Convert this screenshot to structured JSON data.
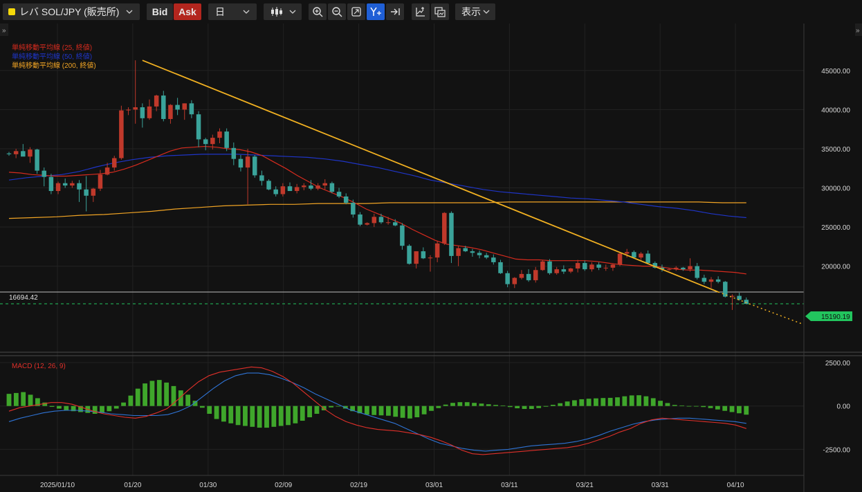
{
  "toolbar": {
    "symbol": "レバ SOL/JPY (販売所)",
    "bid_label": "Bid",
    "ask_label": "Ask",
    "interval": "日",
    "display_label": "表示",
    "colors": {
      "symbol_marker": "#f5d90a",
      "ask_bg": "#b3261e",
      "active_tool": "#1f5fd6"
    },
    "icons": [
      "chevron-down-icon",
      "candlestick-type-icon",
      "zoom-in-icon",
      "zoom-out-icon",
      "fit-screen-icon",
      "y-axis-scale-icon",
      "scroll-to-latest-icon",
      "add-indicator-icon",
      "compare-icon",
      "chevron-down-icon"
    ]
  },
  "chart_data": [
    {
      "type": "candlestick",
      "title": "",
      "legend": [
        {
          "label": "単純移動平均線 (25, 終値)",
          "color": "#d62b1e"
        },
        {
          "label": "単純移動平均線 (50, 終値)",
          "color": "#1f35c8"
        },
        {
          "label": "単純移動平均線 (200, 終値)",
          "color": "#f1a424"
        }
      ],
      "x_ticks": [
        "2025/01/10",
        "01/20",
        "01/30",
        "02/09",
        "02/19",
        "03/01",
        "03/11",
        "03/21",
        "03/31",
        "04/10"
      ],
      "y_ticks": [
        20000,
        25000,
        30000,
        35000,
        40000,
        45000
      ],
      "y_tick_labels": [
        "20000.00",
        "25000.00",
        "30000.00",
        "35000.00",
        "40000.00",
        "45000.00"
      ],
      "y_range": [
        9000,
        51000
      ],
      "horizontal_line": {
        "value": 16694.42,
        "label": "16694.42"
      },
      "current_price": {
        "value": 15190.19,
        "label": "15190.19",
        "color": "#22c55e"
      },
      "up_color": "#c0392b",
      "down_color": "#3aa39a",
      "ohlc": [
        [
          34400,
          34600,
          34100,
          34300
        ],
        [
          34300,
          35000,
          33800,
          34700
        ],
        [
          34700,
          35600,
          34200,
          34000
        ],
        [
          34000,
          35200,
          33200,
          34900
        ],
        [
          34900,
          35000,
          31800,
          32200
        ],
        [
          32200,
          32600,
          30200,
          31400
        ],
        [
          31400,
          31800,
          29200,
          29600
        ],
        [
          29600,
          30800,
          29200,
          30600
        ],
        [
          30600,
          31200,
          30000,
          30300
        ],
        [
          30300,
          30900,
          30000,
          30600
        ],
        [
          30600,
          31000,
          28200,
          29800
        ],
        [
          29800,
          31500,
          27000,
          29000
        ],
        [
          29000,
          30000,
          28200,
          29900
        ],
        [
          29900,
          32300,
          29600,
          31700
        ],
        [
          31700,
          33200,
          31600,
          32600
        ],
        [
          32600,
          34100,
          32200,
          33800
        ],
        [
          33800,
          40500,
          33600,
          39900
        ],
        [
          39900,
          40300,
          39300,
          40000
        ],
        [
          40000,
          46300,
          38200,
          40300
        ],
        [
          40300,
          40800,
          37700,
          38900
        ],
        [
          38900,
          41300,
          38700,
          40400
        ],
        [
          40400,
          41900,
          39800,
          41800
        ],
        [
          41800,
          42400,
          38500,
          38800
        ],
        [
          38800,
          40700,
          38200,
          40600
        ],
        [
          40600,
          41500,
          39300,
          40000
        ],
        [
          40000,
          40800,
          38700,
          40800
        ],
        [
          40800,
          41200,
          38900,
          39400
        ],
        [
          39400,
          39800,
          35200,
          36200
        ],
        [
          36200,
          36400,
          34800,
          35600
        ],
        [
          35600,
          36800,
          34900,
          36400
        ],
        [
          36400,
          37600,
          35700,
          37200
        ],
        [
          37200,
          37600,
          34700,
          35100
        ],
        [
          35100,
          35800,
          32900,
          33700
        ],
        [
          33700,
          34200,
          32100,
          32600
        ],
        [
          32600,
          35000,
          27900,
          34000
        ],
        [
          34000,
          34200,
          31300,
          31600
        ],
        [
          31600,
          32200,
          30300,
          30900
        ],
        [
          30900,
          31100,
          29700,
          29800
        ],
        [
          29800,
          30200,
          28900,
          29200
        ],
        [
          29200,
          30600,
          28900,
          30200
        ],
        [
          30200,
          30700,
          29600,
          29600
        ],
        [
          29600,
          30500,
          29300,
          30100
        ],
        [
          30100,
          30600,
          29700,
          30300
        ],
        [
          30300,
          31000,
          29700,
          29900
        ],
        [
          29900,
          30600,
          29700,
          30300
        ],
        [
          30300,
          31100,
          29800,
          30600
        ],
        [
          30600,
          30800,
          29300,
          29500
        ],
        [
          29500,
          30000,
          28700,
          28900
        ],
        [
          28900,
          29300,
          27900,
          28100
        ],
        [
          28100,
          28500,
          26200,
          26600
        ],
        [
          26600,
          26900,
          25100,
          25300
        ],
        [
          25300,
          25600,
          25200,
          25500
        ],
        [
          25500,
          26700,
          25000,
          26300
        ],
        [
          26300,
          26700,
          25400,
          25600
        ],
        [
          25600,
          26300,
          25300,
          25600
        ],
        [
          25600,
          26000,
          25100,
          25200
        ],
        [
          25200,
          25500,
          22100,
          22600
        ],
        [
          22600,
          22800,
          20200,
          20300
        ],
        [
          20300,
          21900,
          19700,
          21900
        ],
        [
          21900,
          22400,
          20900,
          21000
        ],
        [
          21000,
          21400,
          19300,
          21100
        ],
        [
          21100,
          23200,
          20500,
          22900
        ],
        [
          22900,
          26900,
          22700,
          26800
        ],
        [
          26800,
          27000,
          20400,
          21300
        ],
        [
          21300,
          22600,
          20000,
          22300
        ],
        [
          22300,
          22600,
          21800,
          21900
        ],
        [
          21900,
          22200,
          21200,
          21700
        ],
        [
          21700,
          22000,
          21000,
          21400
        ],
        [
          21400,
          21700,
          20900,
          21100
        ],
        [
          21100,
          21500,
          20200,
          20500
        ],
        [
          20500,
          20800,
          19000,
          19100
        ],
        [
          19100,
          19400,
          17300,
          17700
        ],
        [
          17700,
          18600,
          17200,
          18500
        ],
        [
          18500,
          19500,
          18300,
          19000
        ],
        [
          19000,
          19600,
          18000,
          18200
        ],
        [
          18200,
          19900,
          17900,
          19500
        ],
        [
          19500,
          20800,
          19400,
          20600
        ],
        [
          20600,
          20900,
          18900,
          19100
        ],
        [
          19100,
          19900,
          18900,
          19600
        ],
        [
          19600,
          20100,
          19000,
          19300
        ],
        [
          19300,
          19800,
          19100,
          19700
        ],
        [
          19700,
          20800,
          19200,
          20400
        ],
        [
          20400,
          20700,
          19400,
          19600
        ],
        [
          19600,
          20500,
          19300,
          20200
        ],
        [
          20200,
          20500,
          19500,
          19800
        ],
        [
          19800,
          20200,
          19400,
          19800
        ],
        [
          19800,
          20300,
          19400,
          20200
        ],
        [
          20200,
          21800,
          20000,
          21600
        ],
        [
          21600,
          22200,
          21100,
          21800
        ],
        [
          21800,
          22000,
          21000,
          21100
        ],
        [
          21100,
          21800,
          20800,
          21600
        ],
        [
          21600,
          22000,
          20300,
          20400
        ],
        [
          20400,
          20600,
          19700,
          19800
        ],
        [
          19800,
          20200,
          19300,
          19600
        ],
        [
          19600,
          19800,
          19400,
          19600
        ],
        [
          19600,
          20000,
          19400,
          19800
        ],
        [
          19800,
          19900,
          19400,
          19600
        ],
        [
          19600,
          21000,
          19300,
          20000
        ],
        [
          20000,
          20400,
          18300,
          18500
        ],
        [
          18500,
          18900,
          17700,
          18000
        ],
        [
          18000,
          18600,
          17200,
          18300
        ],
        [
          18300,
          18700,
          17800,
          18000
        ],
        [
          18000,
          18100,
          16000,
          16100
        ],
        [
          16100,
          16400,
          14400,
          16200
        ],
        [
          16200,
          16600,
          15600,
          15700
        ],
        [
          15700,
          16000,
          15100,
          15190
        ]
      ],
      "ma25": [
        32000,
        31900,
        31700,
        31600,
        31500,
        31500,
        31600,
        31700,
        31800,
        32000,
        32400,
        32900,
        33500,
        34100,
        34700,
        35100,
        35200,
        35300,
        35200,
        35000,
        34900,
        34600,
        34100,
        33300,
        32500,
        31600,
        30800,
        30000,
        29400,
        28800,
        28100,
        27300,
        26700,
        26100,
        25500,
        24700,
        24000,
        23300,
        22800,
        22600,
        22400,
        22100,
        21700,
        21300,
        20900,
        20800,
        20800,
        20700,
        20700,
        20700,
        20700,
        20600,
        20400,
        20200,
        20100,
        20000,
        20000,
        19800,
        19600,
        19500,
        19500,
        19400,
        19300,
        19200,
        19000
      ],
      "ma50": [
        31000,
        31300,
        31500,
        31700,
        32100,
        32700,
        33200,
        33600,
        33900,
        34100,
        34200,
        34300,
        34300,
        34300,
        34200,
        34100,
        34000,
        33900,
        33700,
        33400,
        33000,
        32600,
        32100,
        31600,
        31000,
        30600,
        30200,
        29800,
        29500,
        29300,
        29100,
        28900,
        28700,
        28600,
        28400,
        28200,
        27900,
        27600,
        27400,
        27100,
        26700,
        26400,
        26200
      ],
      "ma200": [
        26100,
        26200,
        26300,
        26500,
        26600,
        26800,
        27000,
        27300,
        27500,
        27700,
        27800,
        27900,
        27900,
        28000,
        28000,
        28000,
        28100,
        28100,
        28100,
        28100,
        28100,
        28200,
        28200,
        28200,
        28200,
        28200,
        28200,
        28200,
        28200,
        28200,
        28100,
        28100
      ],
      "trendline": {
        "from": {
          "bar": 19,
          "value": 46300
        },
        "to": {
          "bar": 101,
          "value": 16700
        },
        "extension_to": {
          "bar": 113,
          "value": 12600
        },
        "color": "#f1b021"
      }
    },
    {
      "type": "macd",
      "title": "MACD (12, 26, 9)",
      "y_ticks": [
        2500,
        0,
        -2500
      ],
      "y_tick_labels": [
        "2500.00",
        "0.00",
        "-2500.00"
      ],
      "y_range": [
        -4000,
        2900
      ],
      "macd_color": "#e0302a",
      "signal_color": "#2f74d6",
      "histogram_color": "#3fa62b",
      "histogram": [
        700,
        750,
        800,
        650,
        450,
        200,
        -50,
        -150,
        -250,
        -300,
        -350,
        -400,
        -450,
        -400,
        -300,
        -150,
        200,
        600,
        1000,
        1300,
        1450,
        1500,
        1350,
        1150,
        900,
        650,
        300,
        -100,
        -450,
        -750,
        -900,
        -1000,
        -1100,
        -1150,
        -1200,
        -1250,
        -1250,
        -1200,
        -1150,
        -1100,
        -1000,
        -850,
        -650,
        -450,
        -250,
        -80,
        -30,
        -150,
        -300,
        -420,
        -500,
        -520,
        -540,
        -560,
        -620,
        -680,
        -720,
        -650,
        -480,
        -280,
        -120,
        80,
        180,
        220,
        220,
        180,
        140,
        100,
        60,
        30,
        -60,
        -130,
        -170,
        -170,
        -120,
        -40,
        70,
        160,
        260,
        330,
        390,
        420,
        440,
        460,
        470,
        500,
        560,
        610,
        620,
        560,
        450,
        300,
        170,
        60,
        30,
        -10,
        -30,
        -60,
        -120,
        -200,
        -280,
        -350,
        -420,
        -500
      ],
      "macd": [
        -300,
        -100,
        0,
        100,
        200,
        200,
        100,
        -100,
        -300,
        -450,
        -550,
        -650,
        -700,
        -600,
        -400,
        -150,
        350,
        900,
        1400,
        1750,
        1950,
        2050,
        2150,
        2250,
        2200,
        2000,
        1700,
        1300,
        800,
        300,
        -200,
        -600,
        -900,
        -1100,
        -1250,
        -1350,
        -1400,
        -1450,
        -1550,
        -1650,
        -1800,
        -2000,
        -2250,
        -2550,
        -2750,
        -2800,
        -2750,
        -2700,
        -2650,
        -2600,
        -2550,
        -2500,
        -2450,
        -2400,
        -2300,
        -2150,
        -1950,
        -1750,
        -1500,
        -1300,
        -1000,
        -800,
        -700,
        -750,
        -800,
        -850,
        -900,
        -950,
        -1000,
        -1100,
        -1300
      ],
      "signal": [
        -900,
        -700,
        -550,
        -400,
        -300,
        -250,
        -250,
        -300,
        -350,
        -450,
        -500,
        -550,
        -550,
        -550,
        -500,
        -300,
        0,
        500,
        1000,
        1450,
        1750,
        1900,
        1900,
        1800,
        1600,
        1350,
        1050,
        700,
        400,
        100,
        -200,
        -400,
        -600,
        -800,
        -1000,
        -1300,
        -1600,
        -1900,
        -2150,
        -2300,
        -2450,
        -2550,
        -2600,
        -2550,
        -2500,
        -2400,
        -2300,
        -2250,
        -2200,
        -2150,
        -2050,
        -1900,
        -1700,
        -1450,
        -1250,
        -1050,
        -900,
        -800,
        -750,
        -700,
        -700,
        -750,
        -800,
        -850,
        -900,
        -1000
      ]
    }
  ]
}
